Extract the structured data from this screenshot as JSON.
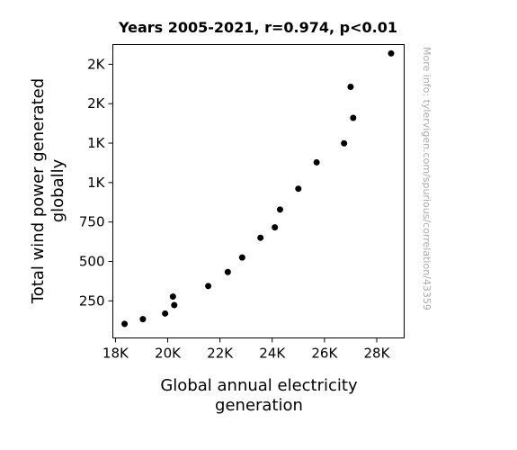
{
  "chart_data": {
    "type": "scatter",
    "title": "Years 2005-2021, r=0.974, p<0.01",
    "xlabel": [
      "Global annual electricity",
      "generation"
    ],
    "ylabel": [
      "Total wind power generated",
      "globally"
    ],
    "xlim": [
      17900,
      29050
    ],
    "ylim": [
      15,
      1875
    ],
    "x_ticks": [
      {
        "value": 18000,
        "label": "18K"
      },
      {
        "value": 20000,
        "label": "20K"
      },
      {
        "value": 22000,
        "label": "22K"
      },
      {
        "value": 24000,
        "label": "24K"
      },
      {
        "value": 26000,
        "label": "26K"
      },
      {
        "value": 28000,
        "label": "28K"
      }
    ],
    "y_ticks": [
      {
        "value": 250,
        "label": "250"
      },
      {
        "value": 500,
        "label": "500"
      },
      {
        "value": 750,
        "label": "750"
      },
      {
        "value": 1000,
        "label": "1K"
      },
      {
        "value": 1250,
        "label": "1K"
      },
      {
        "value": 1500,
        "label": "2K"
      },
      {
        "value": 1750,
        "label": "2K"
      }
    ],
    "points": [
      {
        "x": 18350,
        "y": 104
      },
      {
        "x": 19050,
        "y": 134
      },
      {
        "x": 19900,
        "y": 170
      },
      {
        "x": 20250,
        "y": 223
      },
      {
        "x": 20200,
        "y": 277
      },
      {
        "x": 21550,
        "y": 344
      },
      {
        "x": 22300,
        "y": 433
      },
      {
        "x": 22850,
        "y": 525
      },
      {
        "x": 23550,
        "y": 650
      },
      {
        "x": 24100,
        "y": 716
      },
      {
        "x": 24300,
        "y": 829
      },
      {
        "x": 25000,
        "y": 961
      },
      {
        "x": 25700,
        "y": 1128
      },
      {
        "x": 26750,
        "y": 1249
      },
      {
        "x": 27100,
        "y": 1410
      },
      {
        "x": 27000,
        "y": 1607
      },
      {
        "x": 28550,
        "y": 1819
      }
    ],
    "marker_color": "#000000",
    "grid": false,
    "legend": "none"
  },
  "watermark": "More info: tylervigen.com/spurious/correlation/43359"
}
